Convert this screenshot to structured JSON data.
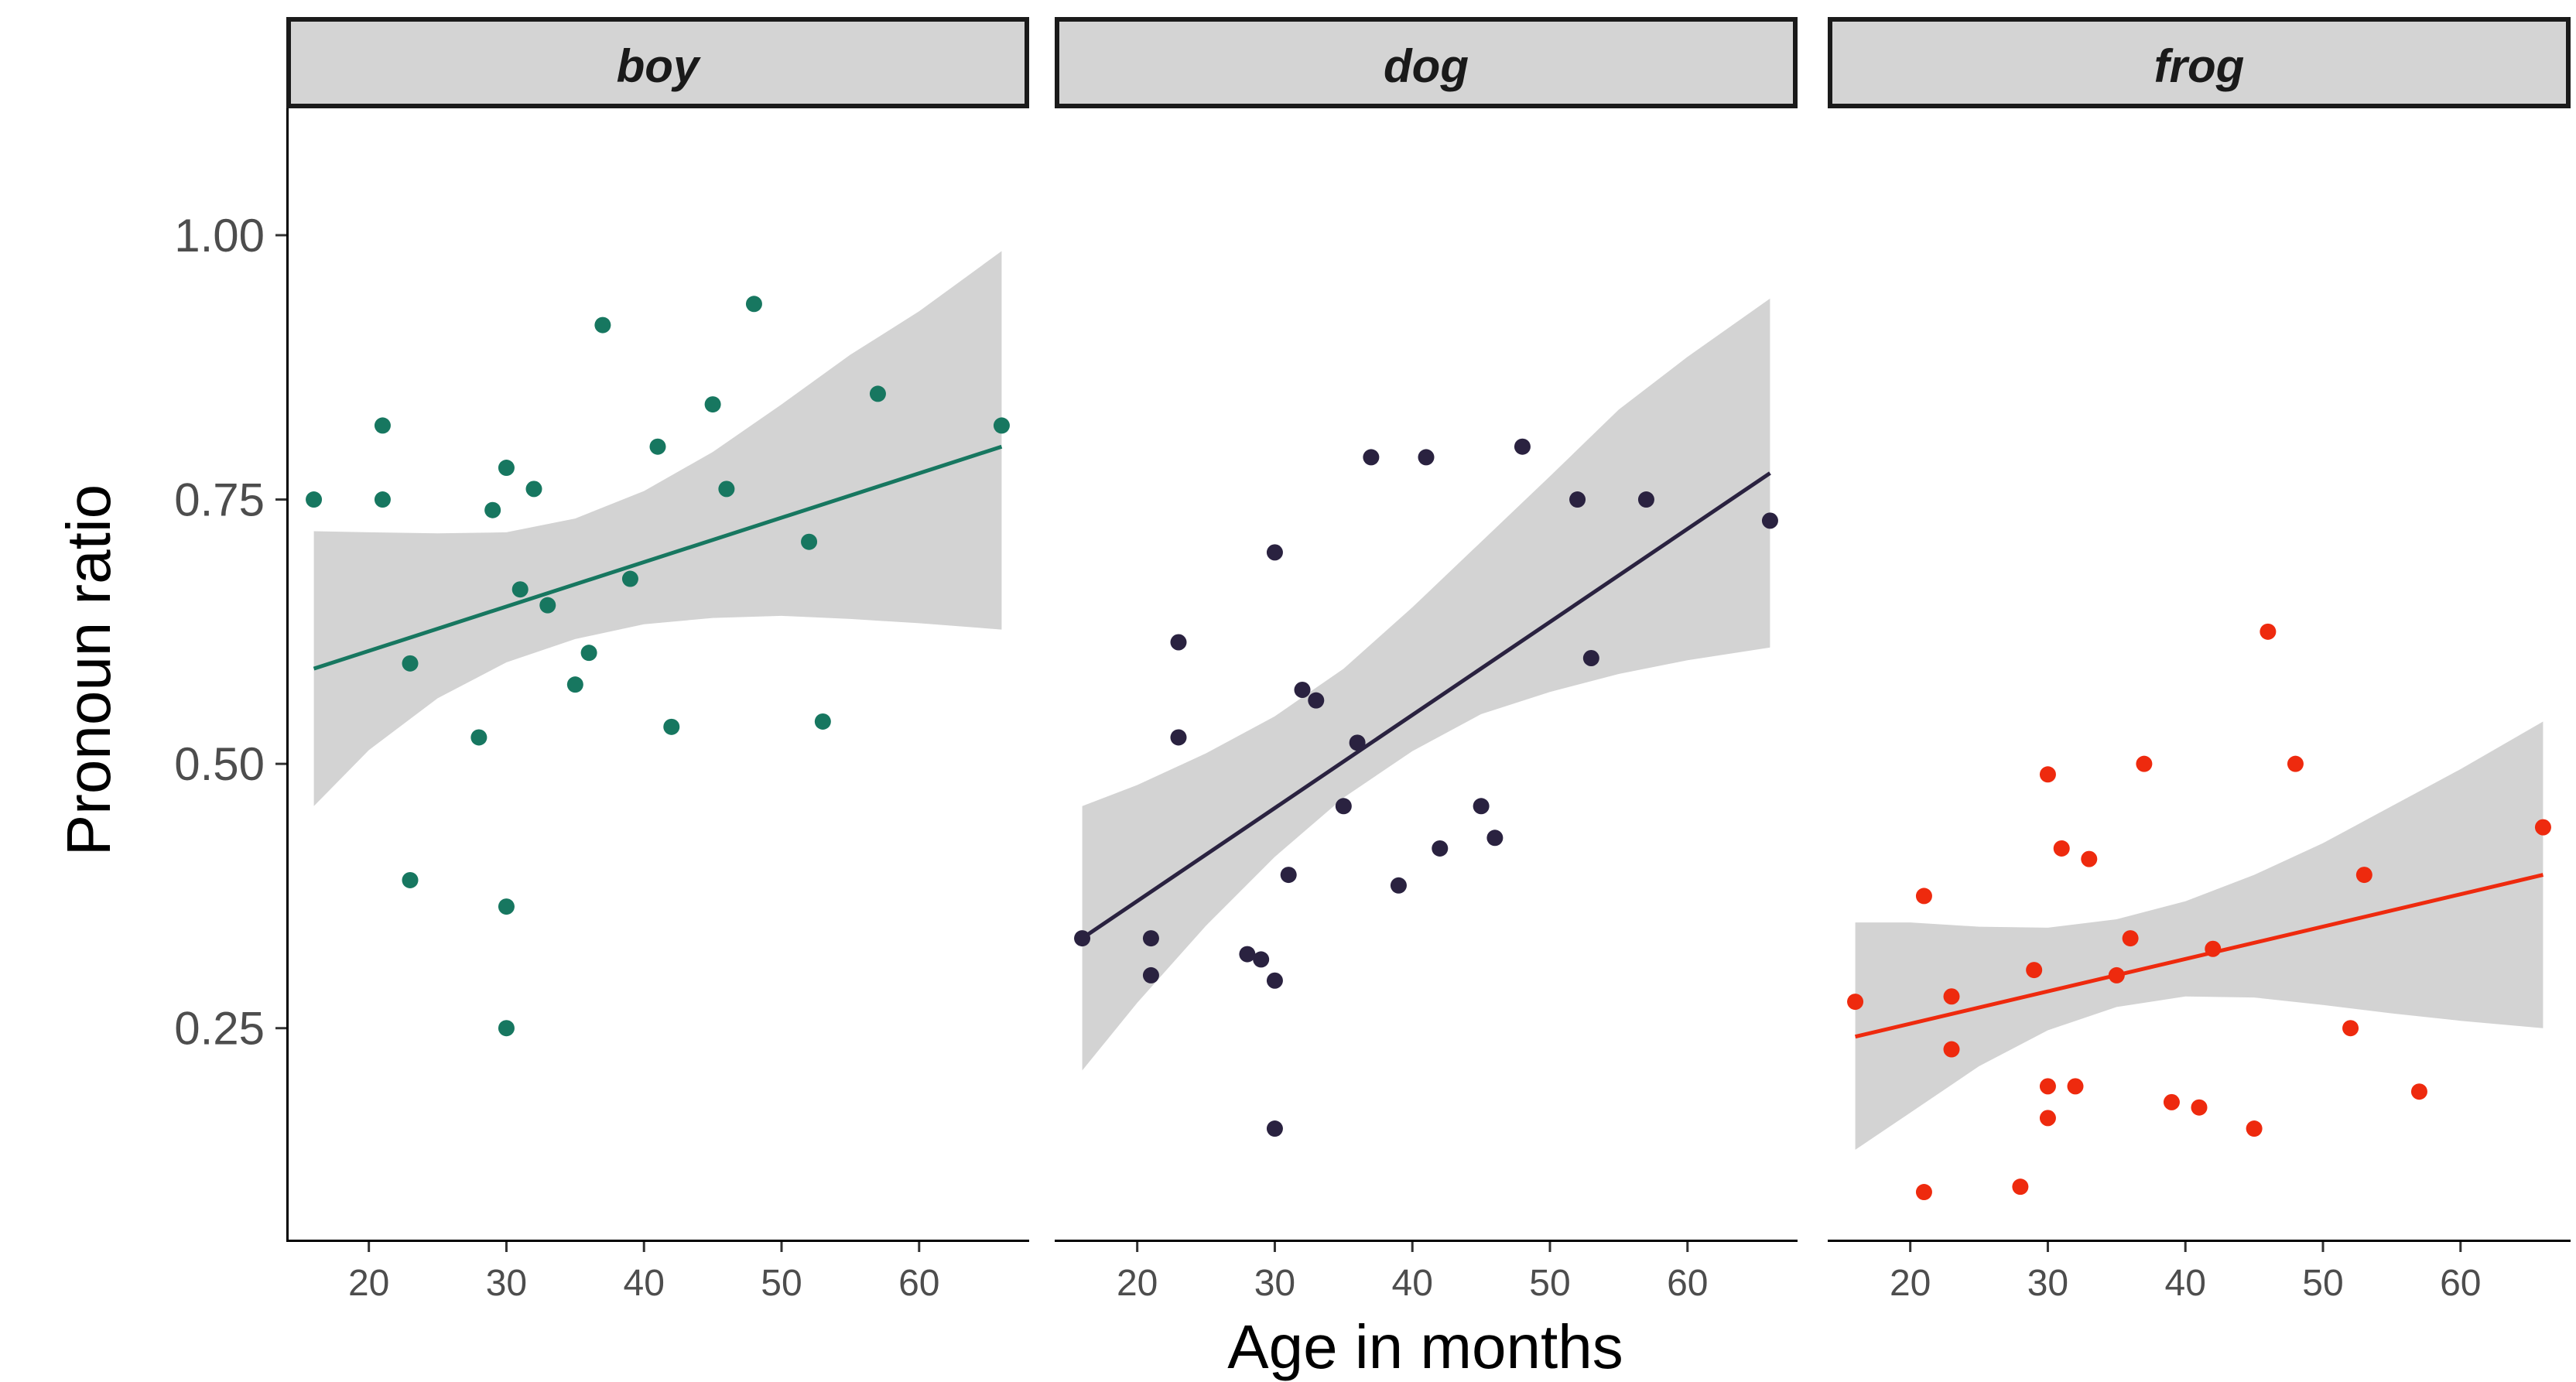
{
  "chart_data": {
    "type": "scatter",
    "xlabel": "Age in months",
    "ylabel": "Pronoun ratio",
    "xlim": [
      14,
      68
    ],
    "ylim": [
      0.05,
      1.12
    ],
    "x_ticks": [
      "20",
      "30",
      "40",
      "50",
      "60"
    ],
    "y_ticks": [
      "0.25",
      "0.50",
      "0.75",
      "1.00"
    ],
    "grid": false,
    "facets": [
      {
        "label": "boy",
        "color": "#177760",
        "points": [
          [
            16,
            0.75
          ],
          [
            21,
            0.82
          ],
          [
            21,
            0.75
          ],
          [
            23,
            0.595
          ],
          [
            23,
            0.39
          ],
          [
            28,
            0.525
          ],
          [
            29,
            0.74
          ],
          [
            30,
            0.78
          ],
          [
            30,
            0.365
          ],
          [
            30,
            0.25
          ],
          [
            31,
            0.665
          ],
          [
            32,
            0.76
          ],
          [
            33,
            0.65
          ],
          [
            35,
            0.575
          ],
          [
            36,
            0.605
          ],
          [
            37,
            0.915
          ],
          [
            39,
            0.675
          ],
          [
            41,
            0.8
          ],
          [
            42,
            0.535
          ],
          [
            45,
            0.84
          ],
          [
            46,
            0.76
          ],
          [
            48,
            0.935
          ],
          [
            52,
            0.71
          ],
          [
            53,
            0.54
          ],
          [
            57,
            0.85
          ],
          [
            66,
            0.82
          ]
        ],
        "fit": {
          "x": [
            16,
            66
          ],
          "y": [
            0.59,
            0.8
          ]
        },
        "band": {
          "x": [
            16,
            20,
            25,
            30,
            35,
            40,
            45,
            50,
            55,
            60,
            66
          ],
          "lower": [
            0.46,
            0.513,
            0.562,
            0.596,
            0.618,
            0.632,
            0.638,
            0.64,
            0.637,
            0.633,
            0.627
          ],
          "upper": [
            0.72,
            0.719,
            0.718,
            0.719,
            0.732,
            0.758,
            0.795,
            0.84,
            0.887,
            0.928,
            0.985
          ]
        }
      },
      {
        "label": "dog",
        "color": "#2a2240",
        "points": [
          [
            16,
            0.335
          ],
          [
            21,
            0.335
          ],
          [
            21,
            0.3
          ],
          [
            23,
            0.615
          ],
          [
            23,
            0.525
          ],
          [
            28,
            0.32
          ],
          [
            29,
            0.315
          ],
          [
            30,
            0.7
          ],
          [
            30,
            0.295
          ],
          [
            30,
            0.155
          ],
          [
            31,
            0.395
          ],
          [
            32,
            0.57
          ],
          [
            33,
            0.56
          ],
          [
            35,
            0.46
          ],
          [
            36,
            0.52
          ],
          [
            37,
            0.79
          ],
          [
            39,
            0.385
          ],
          [
            41,
            0.79
          ],
          [
            42,
            0.42
          ],
          [
            45,
            0.46
          ],
          [
            46,
            0.43
          ],
          [
            48,
            0.8
          ],
          [
            52,
            0.75
          ],
          [
            53,
            0.6
          ],
          [
            57,
            0.75
          ],
          [
            66,
            0.73
          ]
        ],
        "fit": {
          "x": [
            16,
            66
          ],
          "y": [
            0.335,
            0.775
          ]
        },
        "band": {
          "x": [
            16,
            20,
            25,
            30,
            35,
            40,
            45,
            50,
            55,
            60,
            66
          ],
          "lower": [
            0.21,
            0.274,
            0.347,
            0.412,
            0.468,
            0.512,
            0.547,
            0.568,
            0.585,
            0.598,
            0.61
          ],
          "upper": [
            0.46,
            0.48,
            0.51,
            0.545,
            0.59,
            0.648,
            0.71,
            0.772,
            0.835,
            0.885,
            0.94
          ]
        }
      },
      {
        "label": "frog",
        "color": "#ee2a0e",
        "points": [
          [
            16,
            0.275
          ],
          [
            21,
            0.375
          ],
          [
            21,
            0.095
          ],
          [
            23,
            0.28
          ],
          [
            23,
            0.23
          ],
          [
            28,
            0.1
          ],
          [
            29,
            0.305
          ],
          [
            30,
            0.49
          ],
          [
            30,
            0.195
          ],
          [
            30,
            0.165
          ],
          [
            31,
            0.42
          ],
          [
            32,
            0.195
          ],
          [
            33,
            0.41
          ],
          [
            35,
            0.3
          ],
          [
            36,
            0.335
          ],
          [
            37,
            0.5
          ],
          [
            39,
            0.18
          ],
          [
            41,
            0.175
          ],
          [
            42,
            0.325
          ],
          [
            45,
            0.155
          ],
          [
            46,
            0.625
          ],
          [
            48,
            0.5
          ],
          [
            52,
            0.25
          ],
          [
            53,
            0.395
          ],
          [
            57,
            0.19
          ],
          [
            66,
            0.44
          ]
        ],
        "fit": {
          "x": [
            16,
            66
          ],
          "y": [
            0.242,
            0.395
          ]
        },
        "band": {
          "x": [
            16,
            20,
            25,
            30,
            35,
            40,
            45,
            50,
            55,
            60,
            66
          ],
          "lower": [
            0.135,
            0.17,
            0.214,
            0.248,
            0.27,
            0.28,
            0.279,
            0.272,
            0.264,
            0.257,
            0.25
          ],
          "upper": [
            0.35,
            0.35,
            0.346,
            0.345,
            0.353,
            0.37,
            0.395,
            0.425,
            0.46,
            0.495,
            0.54
          ]
        }
      }
    ]
  }
}
